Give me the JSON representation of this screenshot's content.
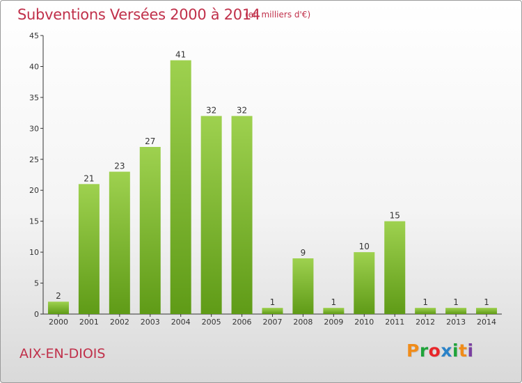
{
  "header": {
    "title": "Subventions Versées 2000 à 2014",
    "unit_note": "(en milliers d'€)"
  },
  "footer": {
    "commune": "AIX-EN-DIOIS",
    "logo_text": "Proxiti",
    "logo_colors": [
      "#f08c1a",
      "#1fa33a",
      "#e8262a",
      "#2a82c8",
      "#1fa33a",
      "#f08c1a",
      "#7a3fa0"
    ]
  },
  "colors": {
    "title": "#c0304a",
    "bar_top": "#9ed14f",
    "bar_bottom": "#5f9b17",
    "axis": "#333333",
    "grid": "#e2e2e2"
  },
  "chart_data": {
    "type": "bar",
    "title": "Subventions Versées 2000 à 2014",
    "subtitle": "(en milliers d'€)",
    "xlabel": "",
    "ylabel": "",
    "categories": [
      "2000",
      "2001",
      "2002",
      "2003",
      "2004",
      "2005",
      "2006",
      "2007",
      "2008",
      "2009",
      "2010",
      "2011",
      "2012",
      "2013",
      "2014"
    ],
    "values": [
      2,
      21,
      23,
      27,
      41,
      32,
      32,
      1,
      9,
      1,
      10,
      15,
      1,
      1,
      1
    ],
    "data_labels": [
      "2",
      "21",
      "23",
      "27",
      "41",
      "32",
      "32",
      "1",
      "9",
      "1",
      "10",
      "15",
      "1",
      "1",
      "1"
    ],
    "ylim": [
      0,
      45
    ],
    "yticks": [
      0,
      5,
      10,
      15,
      20,
      25,
      30,
      35,
      40,
      45
    ],
    "ytick_labels": [
      "0",
      "5",
      "10",
      "15",
      "20",
      "25",
      "30",
      "35",
      "40",
      "45"
    ],
    "grid": false,
    "legend": "none"
  }
}
